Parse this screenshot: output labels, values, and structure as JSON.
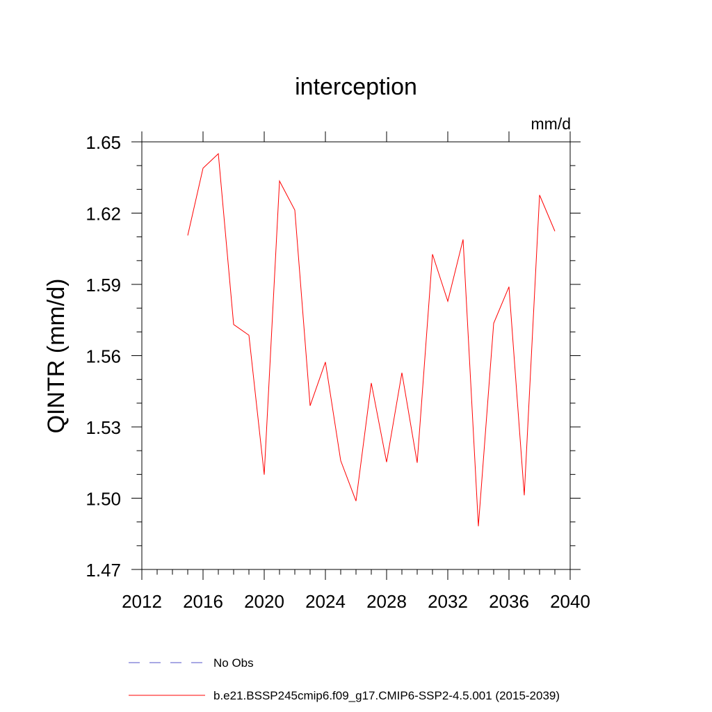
{
  "chart_data": {
    "type": "line",
    "title": "interception",
    "units_label": "mm/d",
    "xlabel": "",
    "ylabel": "QINTR  (mm/d)",
    "xlim": [
      2012,
      2040
    ],
    "ylim": [
      1.47,
      1.65
    ],
    "x_ticks": [
      2012,
      2016,
      2020,
      2024,
      2028,
      2032,
      2036,
      2040
    ],
    "x_tick_labels": [
      "2012",
      "2016",
      "2020",
      "2024",
      "2028",
      "2032",
      "2036",
      "2040"
    ],
    "y_ticks": [
      1.47,
      1.5,
      1.53,
      1.56,
      1.59,
      1.62,
      1.65
    ],
    "y_tick_labels": [
      "1.47",
      "1.50",
      "1.53",
      "1.56",
      "1.59",
      "1.62",
      "1.65"
    ],
    "x_minor_step": 1,
    "y_minor_step": 0.01,
    "grid": false,
    "legend_placement": "bottom",
    "series": [
      {
        "name": "b.e21.BSSP245cmip6.f09_g17.CMIP6-SSP2-4.5.001 (2015-2039)",
        "color": "#ff0000",
        "style": "solid",
        "x": [
          2015,
          2016,
          2017,
          2018,
          2019,
          2020,
          2021,
          2022,
          2023,
          2024,
          2025,
          2026,
          2027,
          2028,
          2029,
          2030,
          2031,
          2032,
          2033,
          2034,
          2035,
          2036,
          2037,
          2038,
          2039
        ],
        "values": [
          1.6106,
          1.6389,
          1.645,
          1.5731,
          1.5686,
          1.5099,
          1.6335,
          1.6213,
          1.5389,
          1.5573,
          1.5158,
          1.4988,
          1.5485,
          1.5152,
          1.5528,
          1.5149,
          1.6027,
          1.5829,
          1.6089,
          1.4882,
          1.5736,
          1.589,
          1.5012,
          1.6276,
          1.6124
        ]
      }
    ],
    "legend": [
      {
        "label": "No Obs",
        "color": "#5050c8",
        "style": "dashed"
      },
      {
        "label": "b.e21.BSSP245cmip6.f09_g17.CMIP6-SSP2-4.5.001 (2015-2039)",
        "color": "#ff0000",
        "style": "solid"
      }
    ]
  }
}
